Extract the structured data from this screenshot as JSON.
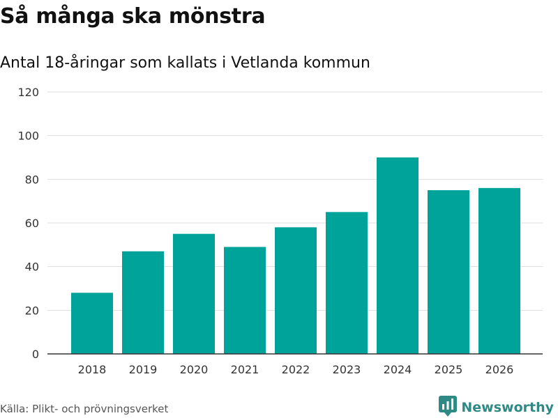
{
  "header": {
    "title": "Så många ska mönstra",
    "subtitle": "Antal 18-åringar som kallats i Vetlanda kommun"
  },
  "footer": {
    "source": "Källa: Plikt- och prövningsverket",
    "brand": "Newsworthy"
  },
  "colors": {
    "bar": "#00a39a",
    "brand": "#2f8a85"
  },
  "chart_data": {
    "type": "bar",
    "title": "Så många ska mönstra",
    "subtitle": "Antal 18-åringar som kallats i Vetlanda kommun",
    "xlabel": "",
    "ylabel": "",
    "categories": [
      "2018",
      "2019",
      "2020",
      "2021",
      "2022",
      "2023",
      "2024",
      "2025",
      "2026"
    ],
    "values": [
      28,
      47,
      55,
      49,
      58,
      65,
      90,
      75,
      76
    ],
    "ylim": [
      0,
      120
    ],
    "yticks": [
      0,
      20,
      40,
      60,
      80,
      100,
      120
    ],
    "grid": true
  }
}
